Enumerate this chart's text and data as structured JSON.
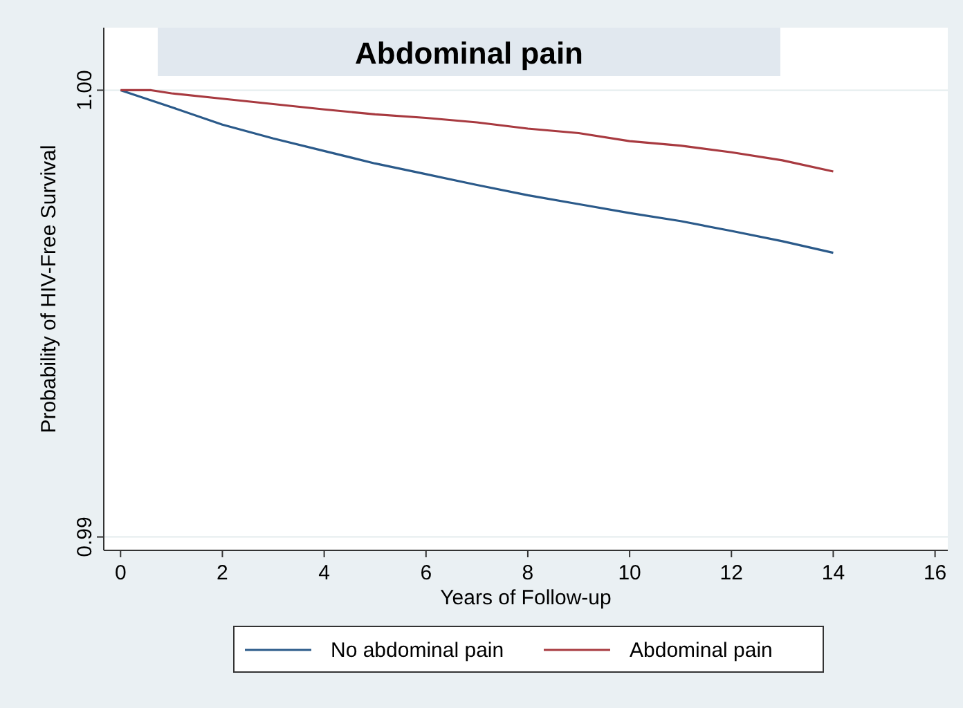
{
  "chart_data": {
    "type": "line",
    "title": "Abdominal pain",
    "xlabel": "Years of Follow-up",
    "ylabel": "Probability of HIV-Free Survival",
    "xlim": [
      -0.33,
      16.25
    ],
    "xticks": [
      0,
      2,
      4,
      6,
      8,
      10,
      12,
      14,
      16
    ],
    "ylim": [
      0.9897,
      1.0014
    ],
    "yticks": [
      {
        "value": 0.99,
        "label": "0.99"
      },
      {
        "value": 1.0,
        "label": "1.00"
      }
    ],
    "grid": "y",
    "legend": "bottom",
    "line_style": "solid",
    "marker": "none",
    "series": [
      {
        "name": "No abdominal pain",
        "color": "#2b5a8a",
        "x": [
          0,
          1,
          2,
          3,
          4,
          5,
          6,
          7,
          8,
          9,
          10,
          11,
          12,
          13,
          14
        ],
        "values": [
          1.0,
          0.99962,
          0.99923,
          0.99892,
          0.99864,
          0.99836,
          0.99812,
          0.99788,
          0.99765,
          0.99745,
          0.99725,
          0.99707,
          0.99685,
          0.99662,
          0.99636
        ]
      },
      {
        "name": "Abdominal pain",
        "color": "#a83a40",
        "x": [
          0,
          0.6,
          1,
          2,
          3,
          4,
          5,
          6,
          7,
          8,
          9,
          10,
          11,
          12,
          13,
          14
        ],
        "values": [
          1.0,
          1.0,
          0.99993,
          0.99981,
          0.99969,
          0.99957,
          0.99946,
          0.99938,
          0.99928,
          0.99914,
          0.99904,
          0.99886,
          0.99876,
          0.99861,
          0.99843,
          0.99818
        ]
      }
    ]
  }
}
